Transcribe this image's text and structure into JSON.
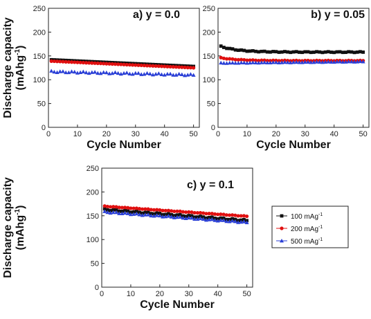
{
  "chart_data": [
    {
      "type": "scatter",
      "panel_label": "a) y = 0.0",
      "xlabel": "Cycle Number",
      "ylabel_line1": "Discharge capacity",
      "ylabel_line2": "(mAhg",
      "ylabel_sup": "-1",
      "ylabel_end": ")",
      "xlim": [
        0,
        52
      ],
      "ylim": [
        0,
        250
      ],
      "xticks": [
        0,
        10,
        20,
        30,
        40,
        50
      ],
      "yticks": [
        0,
        50,
        100,
        150,
        200,
        250
      ],
      "series": [
        {
          "legend_ref": 0,
          "start": 142,
          "end": 128,
          "wiggle": 0
        },
        {
          "legend_ref": 1,
          "start": 139,
          "end": 125,
          "wiggle": 0
        },
        {
          "legend_ref": 2,
          "start": 117,
          "end": 110,
          "wiggle": 1.5
        }
      ]
    },
    {
      "type": "scatter",
      "panel_label": "b) y = 0.05",
      "xlabel": "Cycle Number",
      "ylabel_line1": "",
      "ylabel_line2": "",
      "xlim": [
        0,
        52
      ],
      "ylim": [
        0,
        250
      ],
      "xticks": [
        0,
        10,
        20,
        30,
        40,
        50
      ],
      "yticks": [
        0,
        50,
        100,
        150,
        200,
        250
      ],
      "series": [
        {
          "legend_ref": 0,
          "start": 172,
          "end": 158,
          "wiggle": 0.8,
          "decay": true
        },
        {
          "legend_ref": 1,
          "start": 147,
          "end": 140,
          "wiggle": 0.5,
          "decay": true
        },
        {
          "legend_ref": 2,
          "start": 135,
          "end": 138,
          "wiggle": 0.5
        }
      ]
    },
    {
      "type": "scatter",
      "panel_label": "c) y = 0.1",
      "xlabel": "Cycle Number",
      "ylabel_line1": "Discharge capacity",
      "ylabel_line2": "(mAhg",
      "ylabel_sup": "-1",
      "ylabel_end": ")",
      "xlim": [
        0,
        52
      ],
      "ylim": [
        0,
        250
      ],
      "xticks": [
        0,
        10,
        20,
        30,
        40,
        50
      ],
      "yticks": [
        0,
        50,
        100,
        150,
        200,
        250
      ],
      "series": [
        {
          "legend_ref": 0,
          "start": 163,
          "end": 140,
          "wiggle": 1.5
        },
        {
          "legend_ref": 1,
          "start": 170,
          "end": 149,
          "wiggle": 0.5
        },
        {
          "legend_ref": 2,
          "start": 158,
          "end": 136,
          "wiggle": 1.2
        }
      ]
    }
  ],
  "legend": {
    "entries": [
      {
        "value": "100 mAg",
        "sup": "-1",
        "color": "#111111",
        "marker": "square"
      },
      {
        "value": "200 mAg",
        "sup": "-1",
        "color": "#e01010",
        "marker": "circle"
      },
      {
        "value": "500 mAg",
        "sup": "-1",
        "color": "#2a3fd6",
        "marker": "triangle"
      }
    ]
  }
}
